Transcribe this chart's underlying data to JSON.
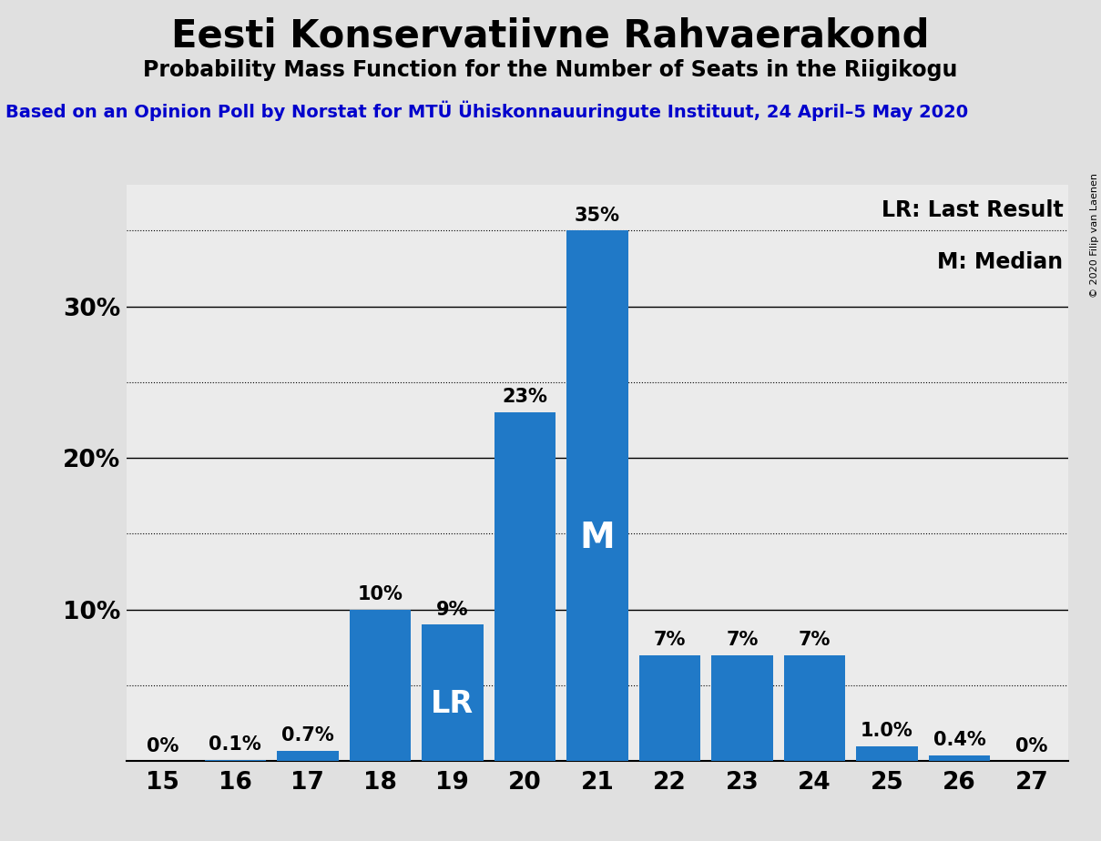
{
  "title": "Eesti Konservatiivne Rahvaerakond",
  "subtitle": "Probability Mass Function for the Number of Seats in the Riigikogu",
  "source_line": "Based on an Opinion Poll by Norstat for MTÜ Ühiskonnauuringute Instituut, 24 April–5 May 2020",
  "copyright": "© 2020 Filip van Laenen",
  "seats": [
    15,
    16,
    17,
    18,
    19,
    20,
    21,
    22,
    23,
    24,
    25,
    26,
    27
  ],
  "probabilities": [
    0.0,
    0.1,
    0.7,
    10.0,
    9.0,
    23.0,
    35.0,
    7.0,
    7.0,
    7.0,
    1.0,
    0.4,
    0.0
  ],
  "labels": [
    "0%",
    "0.1%",
    "0.7%",
    "10%",
    "9%",
    "23%",
    "35%",
    "7%",
    "7%",
    "7%",
    "1.0%",
    "0.4%",
    "0%"
  ],
  "bar_color": "#2079C7",
  "background_color": "#E0E0E0",
  "plot_background_color": "#EBEBEB",
  "last_result_seat": 19,
  "median_seat": 21,
  "major_yticks": [
    10,
    20,
    30
  ],
  "dotted_yticks": [
    5,
    15,
    25,
    35
  ],
  "ylim": [
    0,
    38
  ],
  "title_fontsize": 30,
  "subtitle_fontsize": 17,
  "source_fontsize": 14,
  "label_fontsize": 15,
  "axis_fontsize": 19,
  "legend_fontsize": 17,
  "lr_fontsize": 24,
  "m_fontsize": 28,
  "copyright_fontsize": 8
}
